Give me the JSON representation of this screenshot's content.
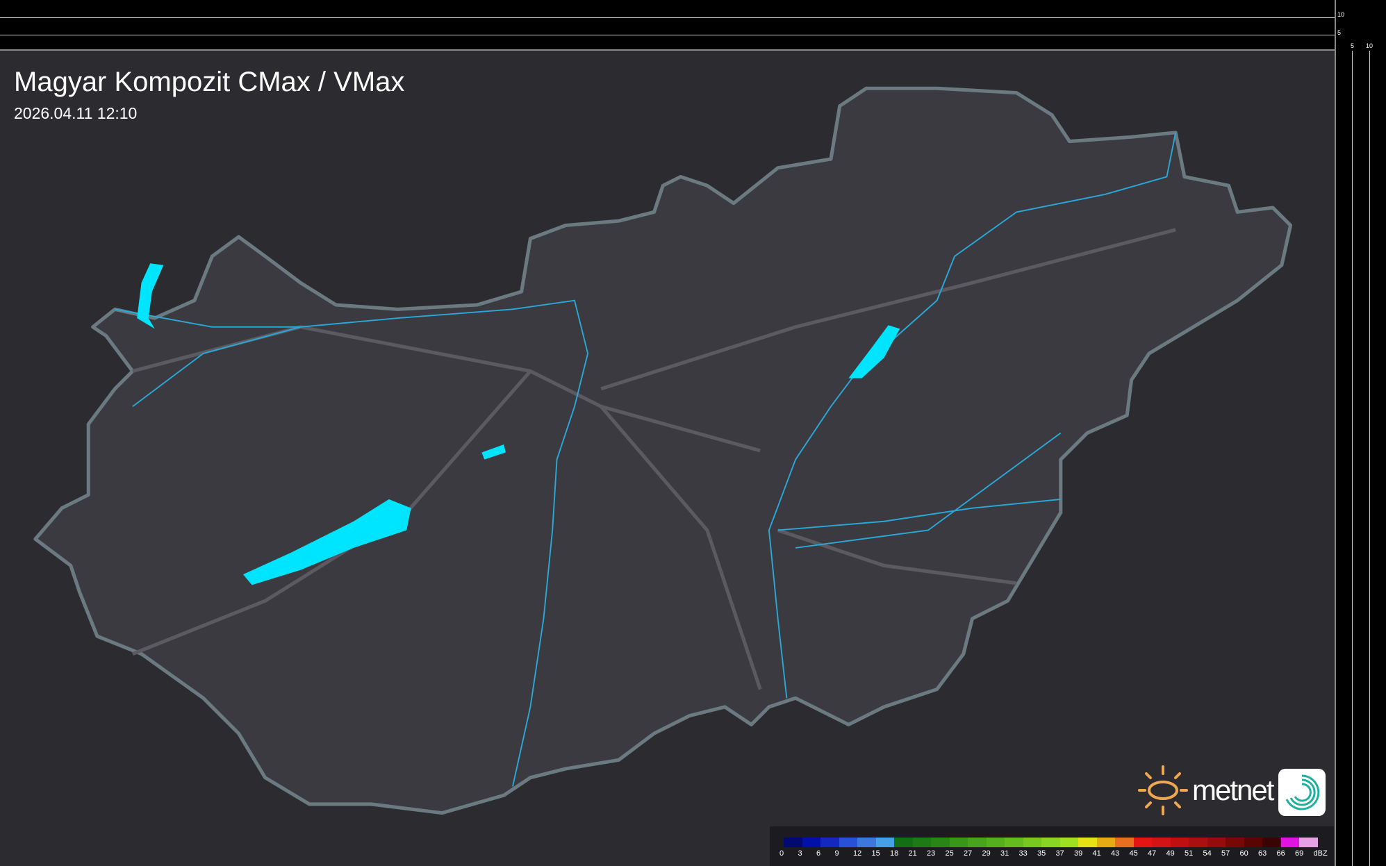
{
  "header": {
    "title": "Magyar Kompozit CMax / VMax",
    "timestamp": "2026.04.11 12:10"
  },
  "scale_panel": {
    "vertical_ticks": [
      "10",
      "5"
    ],
    "horizontal_ticks": [
      "5",
      "10"
    ]
  },
  "legend": {
    "unit": "dBZ",
    "labels": [
      "0",
      "3",
      "6",
      "9",
      "12",
      "15",
      "18",
      "21",
      "23",
      "25",
      "27",
      "29",
      "31",
      "33",
      "35",
      "37",
      "39",
      "41",
      "43",
      "45",
      "47",
      "49",
      "51",
      "54",
      "57",
      "60",
      "63",
      "66",
      "69"
    ],
    "colors": [
      "#000a70",
      "#0010a8",
      "#1428c0",
      "#2850d8",
      "#3c78dc",
      "#46a0e6",
      "#146e14",
      "#1e7a14",
      "#2a8614",
      "#3a9618",
      "#48a41c",
      "#56b01e",
      "#64bc1e",
      "#78c81e",
      "#8cd422",
      "#a0e023",
      "#e6e014",
      "#e6aa14",
      "#e67020",
      "#e61414",
      "#d21414",
      "#be1010",
      "#aa1010",
      "#960c0c",
      "#780808",
      "#5a0404",
      "#3a0404",
      "#e014e0",
      "#e6a0e6",
      "#8ce6e6"
    ]
  },
  "brand": {
    "name": "metnet",
    "sun_color": "#f0a850",
    "lake_color": "#00e5ff",
    "river_color": "#2aa8d8"
  }
}
